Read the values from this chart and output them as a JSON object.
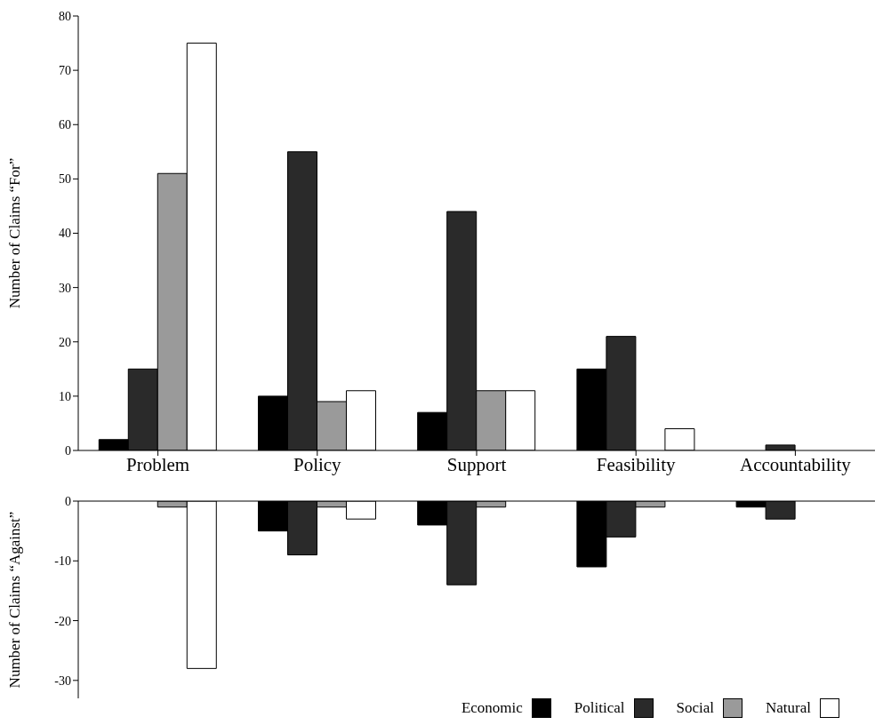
{
  "chart_data": [
    {
      "type": "bar",
      "ylabel": "Number of Claims “For”",
      "categories": [
        "Problem",
        "Policy",
        "Support",
        "Feasibility",
        "Accountability"
      ],
      "ylim": [
        0,
        80
      ],
      "yticks": [
        0,
        10,
        20,
        30,
        40,
        50,
        60,
        70,
        80
      ],
      "series": [
        {
          "color": "#000000",
          "values": [
            2,
            10,
            7,
            15,
            0
          ]
        },
        {
          "color": "#2a2a2a",
          "values": [
            15,
            55,
            44,
            21,
            1
          ]
        },
        {
          "color": "#9a9a9a",
          "values": [
            51,
            9,
            11,
            0,
            0
          ]
        },
        {
          "color": "#ffffff",
          "values": [
            75,
            11,
            11,
            4,
            0
          ]
        }
      ]
    },
    {
      "type": "bar",
      "ylabel": "Number of Claims “Against”",
      "categories": [
        null,
        null,
        null,
        null,
        null
      ],
      "ylim": [
        -33,
        0
      ],
      "yticks": [
        0,
        -10,
        -20,
        -30
      ],
      "tick_labels": "y",
      "legend": "bottom right",
      "series": [
        {
          "name": "Economic",
          "color": "#000000",
          "values": [
            0,
            -5,
            -4,
            -11,
            -1
          ]
        },
        {
          "name": "Political",
          "color": "#2a2a2a",
          "values": [
            0,
            -9,
            -14,
            -6,
            -3
          ]
        },
        {
          "name": "Social",
          "color": "#9a9a9a",
          "values": [
            -1,
            -1,
            -1,
            -1,
            0
          ]
        },
        {
          "name": "Natural",
          "color": "#ffffff",
          "values": [
            -28,
            -3,
            0,
            0,
            0
          ]
        }
      ]
    }
  ]
}
